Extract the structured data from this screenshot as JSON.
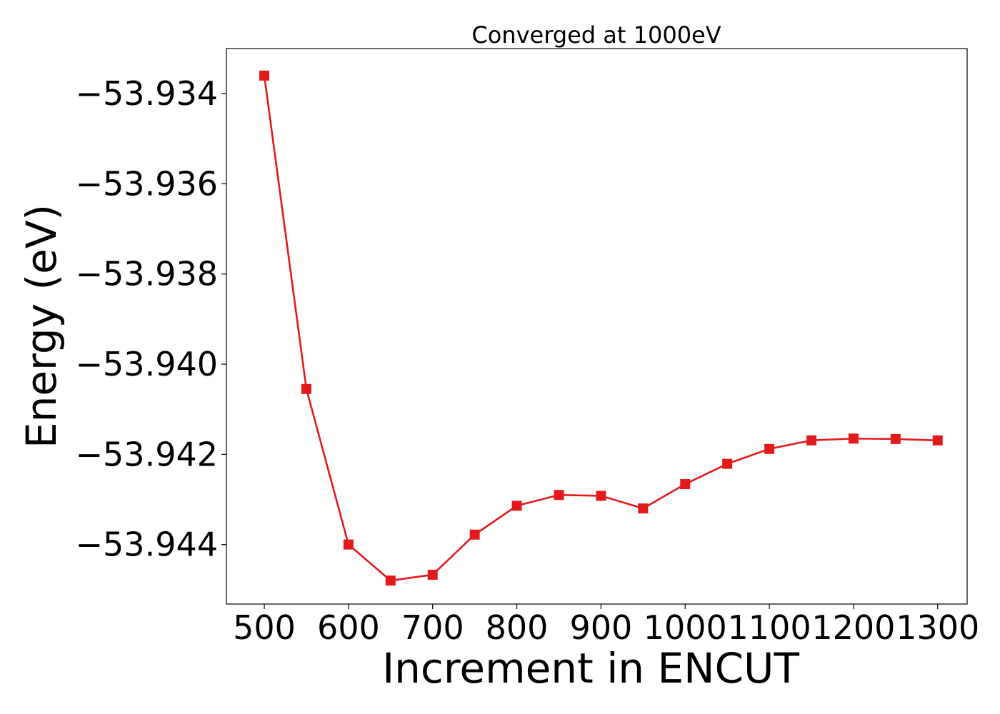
{
  "chart_data": {
    "type": "line",
    "title": "Converged at 1000eV",
    "xlabel": "Increment in ENCUT",
    "ylabel": "Energy (eV)",
    "xlim": [
      455,
      1335
    ],
    "ylim": [
      -53.94532,
      -53.933
    ],
    "xticks": [
      500,
      600,
      700,
      800,
      900,
      1000,
      1100,
      1200,
      1300
    ],
    "xtick_labels": [
      "500",
      "600",
      "700",
      "800",
      "900",
      "1000",
      "1100",
      "1200",
      "1300"
    ],
    "yticks": [
      -53.934,
      -53.936,
      -53.938,
      -53.94,
      -53.942,
      -53.944
    ],
    "ytick_labels": [
      "−53.934",
      "−53.936",
      "−53.938",
      "−53.940",
      "−53.942",
      "−53.944"
    ],
    "grid": false,
    "legend": "none",
    "series": [
      {
        "color": "#e31a1c",
        "marker": "square",
        "x": [
          500,
          550,
          600,
          650,
          700,
          750,
          800,
          850,
          900,
          950,
          1000,
          1050,
          1100,
          1150,
          1200,
          1250,
          1300
        ],
        "values": [
          -53.9336,
          -53.94055,
          -53.944,
          -53.9448,
          -53.94467,
          -53.94378,
          -53.94314,
          -53.9429,
          -53.94292,
          -53.9432,
          -53.94266,
          -53.94221,
          -53.94188,
          -53.94169,
          -53.94165,
          -53.94166,
          -53.94169
        ]
      }
    ]
  }
}
